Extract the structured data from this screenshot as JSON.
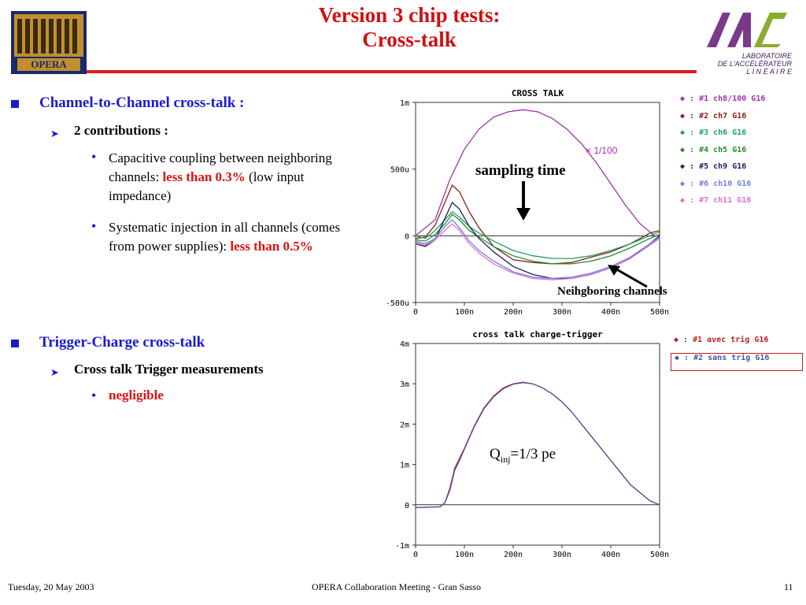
{
  "slide": {
    "title_line1": "Version 3 chip tests:",
    "title_line2": "Cross-talk",
    "logo_left_text": "OPERA",
    "logo_right_lines": [
      "LABORATOIRE",
      "DE L'ACCÉLÉRATEUR",
      "L I N É A I R E"
    ],
    "footer_date": "Tuesday, 20 May 2003",
    "footer_event": "OPERA Collaboration Meeting - Gran Sasso",
    "page_number": "11"
  },
  "bullets": {
    "b1": "Channel-to-Channel cross-talk :",
    "b1_sub": "2 contributions :",
    "b1_item1_a": "Capacitive coupling between neighboring channels: ",
    "b1_item1_red": "less than 0.3%",
    "b1_item1_b": " (low input impedance)",
    "b1_item2_a": "Systematic injection in all channels (comes from power supplies): ",
    "b1_item2_red": "less than 0.5%",
    "b2": "Trigger-Charge cross-talk",
    "b2_sub": "Cross talk Trigger measurements",
    "b2_item1_red": "negligible"
  },
  "annotations": {
    "scale_note": "× 1/100",
    "sampling_time": "sampling time",
    "neighboring": "Neihgboring channels",
    "qinj_q": "Q",
    "qinj_sub": "inj",
    "qinj_rest": "=1/3 pe"
  },
  "colors": {
    "title_red": "#d01010",
    "bullet_blue": "#1a1ad0"
  },
  "chart_data": [
    {
      "type": "line",
      "title": "CROSS TALK",
      "x_ticks": [
        "0",
        "100n",
        "200n",
        "300n",
        "400n",
        "500n"
      ],
      "y_ticks": [
        "1m",
        "500u",
        "0",
        "-500u"
      ],
      "xlim": [
        0,
        500
      ],
      "ylim": [
        -500,
        1000
      ],
      "x_unit_note": "x in ns, y in µV",
      "grid": false,
      "legend_position": "right",
      "series": [
        {
          "name": "#1  ch8/100 G16",
          "color": "#a030b0",
          "x": [
            0,
            40,
            70,
            100,
            130,
            160,
            190,
            220,
            250,
            280,
            310,
            340,
            370,
            400,
            430,
            460,
            490
          ],
          "y": [
            0,
            120,
            420,
            650,
            800,
            890,
            930,
            945,
            930,
            880,
            800,
            690,
            550,
            390,
            230,
            90,
            0
          ]
        },
        {
          "name": "#2  ch7 G16",
          "color": "#8a2020",
          "x": [
            0,
            20,
            40,
            60,
            75,
            90,
            110,
            130,
            160,
            200,
            240,
            280,
            320,
            360,
            400,
            440,
            480,
            500
          ],
          "y": [
            -20,
            -10,
            80,
            250,
            380,
            330,
            180,
            60,
            -80,
            -180,
            -200,
            -210,
            -200,
            -160,
            -120,
            -60,
            20,
            40
          ]
        },
        {
          "name": "#3  ch6 G16",
          "color": "#20a060",
          "x": [
            0,
            20,
            40,
            60,
            75,
            90,
            110,
            130,
            160,
            200,
            240,
            280,
            320,
            360,
            400,
            440,
            480,
            500
          ],
          "y": [
            0,
            -20,
            40,
            120,
            180,
            140,
            70,
            20,
            -40,
            -110,
            -150,
            -170,
            -170,
            -150,
            -110,
            -60,
            0,
            30
          ]
        },
        {
          "name": "#4  ch5 G16",
          "color": "#2a8a2a",
          "x": [
            0,
            20,
            40,
            60,
            75,
            90,
            110,
            130,
            160,
            200,
            240,
            280,
            320,
            360,
            400,
            440,
            480,
            500
          ],
          "y": [
            -30,
            -40,
            10,
            90,
            160,
            120,
            40,
            -10,
            -80,
            -150,
            -190,
            -210,
            -210,
            -190,
            -150,
            -90,
            -20,
            10
          ]
        },
        {
          "name": "#5  ch9 G16",
          "color": "#202060",
          "x": [
            0,
            20,
            40,
            60,
            75,
            90,
            110,
            130,
            160,
            200,
            240,
            280,
            320,
            360,
            400,
            440,
            480,
            500
          ],
          "y": [
            -60,
            -80,
            -30,
            130,
            250,
            200,
            70,
            -20,
            -120,
            -230,
            -290,
            -320,
            -320,
            -290,
            -240,
            -170,
            -60,
            0
          ]
        },
        {
          "name": "#6  ch10 G16",
          "color": "#7080e0",
          "x": [
            0,
            20,
            40,
            60,
            75,
            90,
            110,
            130,
            160,
            200,
            240,
            280,
            320,
            360,
            400,
            440,
            480,
            500
          ],
          "y": [
            -40,
            -60,
            -20,
            70,
            120,
            60,
            -40,
            -110,
            -190,
            -270,
            -310,
            -320,
            -310,
            -280,
            -230,
            -160,
            -60,
            -10
          ]
        },
        {
          "name": "#7  ch11 G16",
          "color": "#e070d0",
          "x": [
            0,
            20,
            40,
            60,
            75,
            90,
            110,
            130,
            160,
            200,
            240,
            280,
            320,
            360,
            400,
            440,
            480,
            500
          ],
          "y": [
            -50,
            -70,
            -30,
            40,
            90,
            40,
            -60,
            -130,
            -210,
            -280,
            -320,
            -330,
            -320,
            -290,
            -240,
            -170,
            -70,
            -20
          ]
        }
      ]
    },
    {
      "type": "line",
      "title": "cross talk charge-trigger",
      "x_ticks": [
        "0",
        "100n",
        "200n",
        "300n",
        "400n",
        "500n"
      ],
      "y_ticks": [
        "4m",
        "3m",
        "2m",
        "1m",
        "0",
        "-1m"
      ],
      "xlim": [
        0,
        500
      ],
      "ylim": [
        -1,
        4
      ],
      "x_unit_note": "x in ns, y in mV",
      "grid": false,
      "legend_position": "right",
      "series": [
        {
          "name": "#1  avec trig G16",
          "color": "#c02020",
          "x": [
            0,
            50,
            60,
            70,
            80,
            90,
            100,
            120,
            140,
            160,
            180,
            200,
            220,
            240,
            260,
            280,
            300,
            320,
            340,
            360,
            380,
            400,
            420,
            440,
            460,
            480,
            500
          ],
          "y": [
            -0.07,
            -0.05,
            0.05,
            0.4,
            0.9,
            1.15,
            1.4,
            1.95,
            2.4,
            2.7,
            2.9,
            3.0,
            3.04,
            3.0,
            2.9,
            2.75,
            2.55,
            2.3,
            2.0,
            1.7,
            1.4,
            1.1,
            0.8,
            0.5,
            0.3,
            0.1,
            0
          ]
        },
        {
          "name": "#2  sans trig G16",
          "color": "#5050a0",
          "x": [
            0,
            50,
            60,
            70,
            80,
            90,
            100,
            120,
            140,
            160,
            180,
            200,
            220,
            240,
            260,
            280,
            300,
            320,
            340,
            360,
            380,
            400,
            420,
            440,
            460,
            480,
            500
          ],
          "y": [
            -0.07,
            -0.05,
            0.05,
            0.35,
            0.85,
            1.1,
            1.38,
            1.93,
            2.38,
            2.68,
            2.88,
            2.99,
            3.03,
            3.0,
            2.9,
            2.75,
            2.55,
            2.3,
            2.0,
            1.7,
            1.4,
            1.1,
            0.8,
            0.5,
            0.3,
            0.1,
            0
          ]
        }
      ]
    }
  ]
}
